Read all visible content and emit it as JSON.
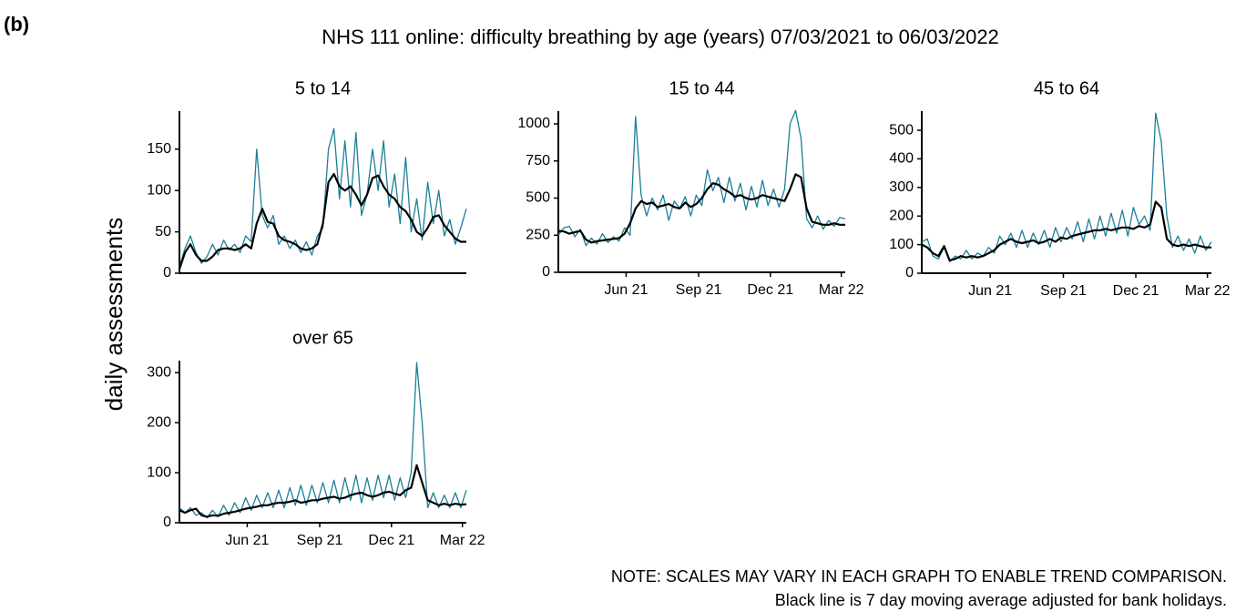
{
  "panel_label": "(b)",
  "title": "NHS 111 online: difficulty breathing by age (years) 07/03/2021 to 06/03/2022",
  "ylabel": "daily assessments",
  "notes": [
    "NOTE: SCALES MAY VARY IN EACH GRAPH TO ENABLE TREND COMPARISON.",
    "Black line is 7 day moving average adjusted for bank holidays."
  ],
  "chart_data": [
    {
      "type": "line",
      "title": "5 to 14",
      "x": [
        "2021-03-07",
        "2021-03-14",
        "2021-03-21",
        "2021-03-28",
        "2021-04-04",
        "2021-04-11",
        "2021-04-18",
        "2021-04-25",
        "2021-05-02",
        "2021-05-09",
        "2021-05-16",
        "2021-05-23",
        "2021-05-30",
        "2021-06-06",
        "2021-06-13",
        "2021-06-20",
        "2021-06-27",
        "2021-07-04",
        "2021-07-11",
        "2021-07-18",
        "2021-07-25",
        "2021-08-01",
        "2021-08-08",
        "2021-08-15",
        "2021-08-22",
        "2021-08-29",
        "2021-09-05",
        "2021-09-12",
        "2021-09-19",
        "2021-09-26",
        "2021-10-03",
        "2021-10-10",
        "2021-10-17",
        "2021-10-24",
        "2021-10-31",
        "2021-11-07",
        "2021-11-14",
        "2021-11-21",
        "2021-11-28",
        "2021-12-05",
        "2021-12-12",
        "2021-12-19",
        "2021-12-26",
        "2022-01-02",
        "2022-01-09",
        "2022-01-16",
        "2022-01-23",
        "2022-01-30",
        "2022-02-06",
        "2022-02-13",
        "2022-02-20",
        "2022-02-27",
        "2022-03-06"
      ],
      "series": [
        {
          "color": "#1b7f98",
          "values": [
            8,
            30,
            45,
            25,
            12,
            20,
            35,
            22,
            40,
            28,
            35,
            25,
            45,
            38,
            150,
            70,
            55,
            70,
            35,
            45,
            30,
            40,
            25,
            38,
            22,
            45,
            55,
            150,
            175,
            90,
            160,
            80,
            170,
            70,
            95,
            150,
            100,
            160,
            80,
            120,
            60,
            140,
            50,
            90,
            40,
            110,
            60,
            100,
            45,
            65,
            35,
            55,
            78
          ]
        },
        {
          "color": "#000000",
          "values": [
            5,
            25,
            35,
            22,
            15,
            15,
            20,
            28,
            30,
            30,
            28,
            30,
            35,
            30,
            60,
            78,
            62,
            60,
            45,
            40,
            38,
            35,
            30,
            28,
            30,
            35,
            60,
            110,
            120,
            105,
            100,
            105,
            95,
            82,
            95,
            115,
            118,
            105,
            95,
            90,
            80,
            75,
            65,
            50,
            45,
            55,
            68,
            70,
            58,
            50,
            42,
            38,
            38
          ]
        }
      ],
      "xlim": [
        "2021-03-07",
        "2022-03-06"
      ],
      "ylim": [
        0,
        196
      ],
      "yticks": [
        0,
        50,
        100,
        150
      ]
    },
    {
      "type": "line",
      "title": "15 to 44",
      "x": [
        "2021-03-07",
        "2021-03-14",
        "2021-03-21",
        "2021-03-28",
        "2021-04-04",
        "2021-04-11",
        "2021-04-18",
        "2021-04-25",
        "2021-05-02",
        "2021-05-09",
        "2021-05-16",
        "2021-05-23",
        "2021-05-30",
        "2021-06-06",
        "2021-06-13",
        "2021-06-20",
        "2021-06-27",
        "2021-07-04",
        "2021-07-11",
        "2021-07-18",
        "2021-07-25",
        "2021-08-01",
        "2021-08-08",
        "2021-08-15",
        "2021-08-22",
        "2021-08-29",
        "2021-09-05",
        "2021-09-12",
        "2021-09-19",
        "2021-09-26",
        "2021-10-03",
        "2021-10-10",
        "2021-10-17",
        "2021-10-24",
        "2021-10-31",
        "2021-11-07",
        "2021-11-14",
        "2021-11-21",
        "2021-11-28",
        "2021-12-05",
        "2021-12-12",
        "2021-12-19",
        "2021-12-26",
        "2022-01-02",
        "2022-01-09",
        "2022-01-16",
        "2022-01-23",
        "2022-01-30",
        "2022-02-06",
        "2022-02-13",
        "2022-02-20",
        "2022-02-27",
        "2022-03-06"
      ],
      "series": [
        {
          "color": "#1b7f98",
          "values": [
            250,
            300,
            310,
            240,
            290,
            180,
            230,
            190,
            260,
            200,
            240,
            210,
            300,
            250,
            1050,
            520,
            380,
            500,
            420,
            520,
            350,
            480,
            430,
            510,
            380,
            520,
            450,
            690,
            550,
            640,
            470,
            640,
            480,
            600,
            420,
            580,
            440,
            620,
            450,
            560,
            440,
            560,
            1000,
            1090,
            900,
            360,
            300,
            380,
            290,
            350,
            310,
            370,
            360
          ]
        },
        {
          "color": "#000000",
          "values": [
            280,
            275,
            260,
            270,
            280,
            220,
            200,
            210,
            215,
            220,
            225,
            230,
            260,
            330,
            430,
            480,
            460,
            470,
            440,
            450,
            460,
            440,
            430,
            470,
            440,
            460,
            500,
            560,
            600,
            590,
            560,
            540,
            510,
            520,
            500,
            490,
            500,
            520,
            510,
            500,
            490,
            480,
            560,
            660,
            640,
            430,
            340,
            330,
            320,
            320,
            330,
            320,
            320
          ]
        }
      ],
      "xlim": [
        "2021-03-07",
        "2022-03-06"
      ],
      "xticks": [
        {
          "value": "2021-06-01",
          "label": "Jun 21"
        },
        {
          "value": "2021-09-01",
          "label": "Sep 21"
        },
        {
          "value": "2021-12-01",
          "label": "Dec 21"
        },
        {
          "value": "2022-03-01",
          "label": "Mar 22"
        }
      ],
      "ylim": [
        0,
        1086
      ],
      "yticks": [
        0,
        250,
        500,
        750,
        1000
      ]
    },
    {
      "type": "line",
      "title": "45 to 64",
      "x": [
        "2021-03-07",
        "2021-03-14",
        "2021-03-21",
        "2021-03-28",
        "2021-04-04",
        "2021-04-11",
        "2021-04-18",
        "2021-04-25",
        "2021-05-02",
        "2021-05-09",
        "2021-05-16",
        "2021-05-23",
        "2021-05-30",
        "2021-06-06",
        "2021-06-13",
        "2021-06-20",
        "2021-06-27",
        "2021-07-04",
        "2021-07-11",
        "2021-07-18",
        "2021-07-25",
        "2021-08-01",
        "2021-08-08",
        "2021-08-15",
        "2021-08-22",
        "2021-08-29",
        "2021-09-05",
        "2021-09-12",
        "2021-09-19",
        "2021-09-26",
        "2021-10-03",
        "2021-10-10",
        "2021-10-17",
        "2021-10-24",
        "2021-10-31",
        "2021-11-07",
        "2021-11-14",
        "2021-11-21",
        "2021-11-28",
        "2021-12-05",
        "2021-12-12",
        "2021-12-19",
        "2021-12-26",
        "2022-01-02",
        "2022-01-09",
        "2022-01-16",
        "2022-01-23",
        "2022-01-30",
        "2022-02-06",
        "2022-02-13",
        "2022-02-20",
        "2022-02-27",
        "2022-03-06"
      ],
      "series": [
        {
          "color": "#1b7f98",
          "values": [
            110,
            120,
            60,
            50,
            90,
            40,
            60,
            50,
            80,
            50,
            70,
            60,
            90,
            70,
            130,
            100,
            140,
            90,
            150,
            90,
            140,
            100,
            150,
            90,
            160,
            110,
            160,
            120,
            180,
            110,
            190,
            120,
            200,
            130,
            210,
            140,
            220,
            130,
            230,
            170,
            200,
            150,
            560,
            460,
            200,
            90,
            130,
            80,
            120,
            70,
            130,
            80,
            110
          ]
        },
        {
          "color": "#000000",
          "values": [
            100,
            90,
            70,
            60,
            95,
            45,
            50,
            60,
            55,
            60,
            55,
            60,
            70,
            80,
            100,
            110,
            120,
            110,
            105,
            110,
            115,
            105,
            110,
            120,
            110,
            125,
            120,
            130,
            135,
            140,
            145,
            150,
            150,
            155,
            150,
            155,
            160,
            160,
            155,
            165,
            160,
            170,
            250,
            230,
            120,
            100,
            95,
            100,
            95,
            100,
            95,
            90,
            90
          ]
        }
      ],
      "xlim": [
        "2021-03-07",
        "2022-03-06"
      ],
      "xticks": [
        {
          "value": "2021-06-01",
          "label": "Jun 21"
        },
        {
          "value": "2021-09-01",
          "label": "Sep 21"
        },
        {
          "value": "2021-12-01",
          "label": "Dec 21"
        },
        {
          "value": "2022-03-01",
          "label": "Mar 22"
        }
      ],
      "ylim": [
        0,
        567
      ],
      "yticks": [
        0,
        100,
        200,
        300,
        400,
        500
      ]
    },
    {
      "type": "line",
      "title": "over 65",
      "x": [
        "2021-03-07",
        "2021-03-14",
        "2021-03-21",
        "2021-03-28",
        "2021-04-04",
        "2021-04-11",
        "2021-04-18",
        "2021-04-25",
        "2021-05-02",
        "2021-05-09",
        "2021-05-16",
        "2021-05-23",
        "2021-05-30",
        "2021-06-06",
        "2021-06-13",
        "2021-06-20",
        "2021-06-27",
        "2021-07-04",
        "2021-07-11",
        "2021-07-18",
        "2021-07-25",
        "2021-08-01",
        "2021-08-08",
        "2021-08-15",
        "2021-08-22",
        "2021-08-29",
        "2021-09-05",
        "2021-09-12",
        "2021-09-19",
        "2021-09-26",
        "2021-10-03",
        "2021-10-10",
        "2021-10-17",
        "2021-10-24",
        "2021-10-31",
        "2021-11-07",
        "2021-11-14",
        "2021-11-21",
        "2021-11-28",
        "2021-12-05",
        "2021-12-12",
        "2021-12-19",
        "2021-12-26",
        "2022-01-02",
        "2022-01-09",
        "2022-01-16",
        "2022-01-23",
        "2022-01-30",
        "2022-02-06",
        "2022-02-13",
        "2022-02-20",
        "2022-02-27",
        "2022-03-06"
      ],
      "series": [
        {
          "color": "#1b7f98",
          "values": [
            30,
            20,
            30,
            15,
            20,
            10,
            25,
            12,
            35,
            15,
            40,
            20,
            50,
            25,
            55,
            30,
            60,
            30,
            65,
            30,
            70,
            35,
            75,
            35,
            75,
            40,
            80,
            40,
            85,
            40,
            90,
            45,
            95,
            40,
            90,
            45,
            95,
            50,
            95,
            45,
            90,
            50,
            100,
            320,
            200,
            30,
            60,
            30,
            55,
            30,
            60,
            30,
            65
          ]
        },
        {
          "color": "#000000",
          "values": [
            25,
            20,
            25,
            28,
            15,
            12,
            15,
            14,
            18,
            20,
            22,
            25,
            28,
            30,
            32,
            35,
            35,
            38,
            40,
            40,
            42,
            45,
            40,
            42,
            45,
            45,
            48,
            50,
            52,
            48,
            50,
            55,
            58,
            60,
            55,
            52,
            55,
            60,
            62,
            58,
            55,
            65,
            70,
            115,
            80,
            45,
            40,
            35,
            38,
            35,
            38,
            36,
            37
          ]
        }
      ],
      "xlim": [
        "2021-03-07",
        "2022-03-06"
      ],
      "xticks": [
        {
          "value": "2021-06-01",
          "label": "Jun 21"
        },
        {
          "value": "2021-09-01",
          "label": "Sep 21"
        },
        {
          "value": "2021-12-01",
          "label": "Dec 21"
        },
        {
          "value": "2022-03-01",
          "label": "Mar 22"
        }
      ],
      "ylim": [
        0,
        324
      ],
      "yticks": [
        0,
        100,
        200,
        300
      ]
    }
  ]
}
